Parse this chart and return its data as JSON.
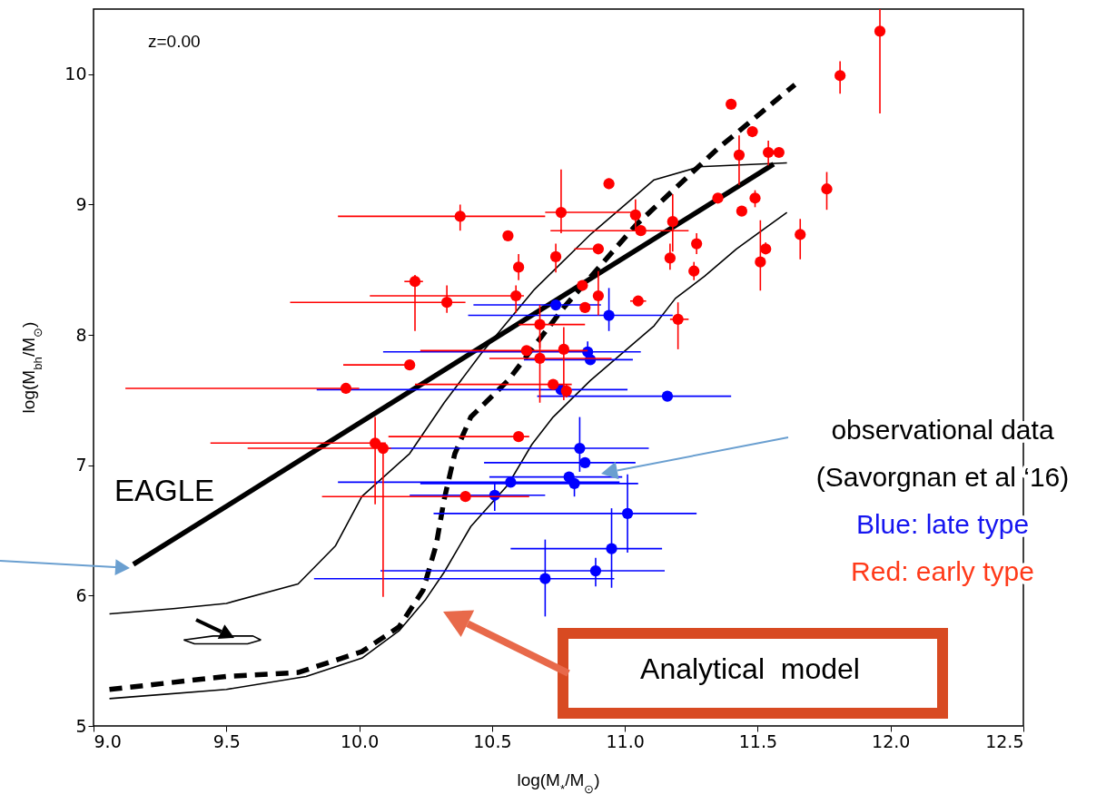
{
  "chart_data": {
    "type": "scatter",
    "xlabel": "log(M$_{*}$/M$_{⊙}$)",
    "ylabel": "log(M$_{bh}$/M$_{⊙}$)",
    "xlim": [
      9,
      12.5
    ],
    "ylim": [
      5,
      10.5
    ],
    "xticks": [
      {
        "value": 9,
        "label": "9.0"
      },
      9.5,
      {
        "value": 10,
        "label": "10.0"
      },
      10.5,
      {
        "value": 11,
        "label": "11.0"
      },
      11.5,
      {
        "value": 12,
        "label": "12.0"
      },
      12.5
    ],
    "yticks": [
      5,
      6,
      7,
      8,
      9,
      10
    ],
    "grid": false,
    "annotations": [
      "z=0.00",
      "EAGLE",
      "observational data",
      "(Savorgnan et al ‘16)",
      "Blue: late type",
      "Red: early type",
      "Analytical  model"
    ],
    "series": [
      {
        "type": "line",
        "color": "#000000",
        "line_style": "solid",
        "x": [
          9.06,
          9.3,
          9.5,
          9.77,
          9.91,
          10.01,
          10.19,
          10.32,
          10.46,
          10.66,
          10.87,
          11.11,
          11.28,
          11.61
        ],
        "values": [
          5.86,
          5.9,
          5.94,
          6.09,
          6.38,
          6.76,
          7.09,
          7.48,
          7.86,
          8.35,
          8.77,
          9.19,
          9.29,
          9.32
        ]
      },
      {
        "type": "line",
        "color": "#000000",
        "line_style": "solid",
        "x": [
          9.06,
          9.5,
          9.8,
          10.01,
          10.15,
          10.25,
          10.32,
          10.42,
          10.56,
          10.65,
          10.73,
          10.87,
          11.11,
          11.19,
          11.3,
          11.42,
          11.61
        ],
        "values": [
          5.21,
          5.28,
          5.38,
          5.52,
          5.73,
          5.97,
          6.18,
          6.53,
          6.85,
          7.16,
          7.37,
          7.65,
          8.07,
          8.28,
          8.45,
          8.66,
          8.94
        ]
      },
      {
        "type": "line",
        "color": "#000000",
        "line_style": "solid",
        "x": [
          9.34,
          9.45,
          9.6,
          9.63
        ],
        "values": [
          5.66,
          5.69,
          5.69,
          5.66
        ]
      },
      {
        "type": "line",
        "color": "#000000",
        "line_style": "solid",
        "x": [
          9.34,
          9.38,
          9.58,
          9.63
        ],
        "values": [
          5.66,
          5.63,
          5.63,
          5.66
        ]
      },
      {
        "type": "line",
        "color": "#000000",
        "line_style": "solid",
        "x": [
          9.15,
          11.56
        ],
        "values": [
          6.24,
          9.31
        ]
      },
      {
        "type": "line",
        "color": "#000000",
        "line_style": "dashed",
        "x": [
          9.06,
          9.5,
          9.77,
          10.01,
          10.15,
          10.24,
          10.29,
          10.32,
          10.36,
          10.42,
          10.56,
          10.77,
          11.04,
          11.35,
          11.64
        ],
        "values": [
          5.28,
          5.38,
          5.41,
          5.57,
          5.76,
          6.04,
          6.39,
          6.74,
          7.09,
          7.37,
          7.65,
          8.21,
          8.84,
          9.43,
          9.92
        ]
      },
      {
        "marker": "circle",
        "color": "#0000ff",
        "x": [
          10.74,
          10.94,
          10.86,
          10.87,
          11.16,
          10.76,
          10.83,
          10.85,
          10.79,
          10.81,
          10.57,
          10.51,
          11.01,
          10.95,
          10.7,
          10.89
        ],
        "values": [
          8.23,
          8.15,
          7.87,
          7.81,
          7.53,
          7.58,
          7.13,
          7.02,
          6.91,
          6.86,
          6.87,
          6.77,
          6.63,
          6.36,
          6.13,
          6.19
        ],
        "errors": [
          null,
          [
            8.03,
            8.36
          ],
          [
            7.82,
            7.95
          ],
          null,
          null,
          null,
          [
            6.95,
            7.37
          ],
          null,
          null,
          [
            6.76,
            6.9
          ],
          null,
          [
            6.65,
            6.86
          ],
          [
            6.33,
            6.93
          ],
          [
            6.06,
            6.67
          ],
          [
            5.84,
            6.43
          ],
          [
            6.07,
            6.29
          ]
        ],
        "xerrors": [
          [
            10.43,
            10.91
          ],
          [
            10.41,
            11.18
          ],
          [
            10.09,
            11.06
          ],
          [
            10.62,
            11.03
          ],
          [
            10.67,
            11.4
          ],
          [
            9.84,
            11.01
          ],
          [
            10.11,
            11.09
          ],
          [
            10.47,
            11.04
          ],
          [
            10.49,
            10.99
          ],
          [
            10.23,
            11.05
          ],
          [
            9.92,
            10.98
          ],
          [
            10.19,
            10.7
          ],
          [
            10.28,
            11.27
          ],
          [
            10.57,
            11.14
          ],
          [
            9.83,
            10.96
          ],
          [
            10.08,
            11.15
          ]
        ]
      },
      {
        "marker": "circle",
        "color": "#ff0000",
        "x": [
          10.38,
          10.76,
          11.04,
          10.94,
          10.56,
          11.06,
          11.18,
          10.9,
          10.74,
          10.6,
          10.21,
          10.33,
          10.59,
          10.84,
          10.9,
          10.85,
          11.05,
          11.2,
          10.68,
          10.63,
          10.77,
          10.68,
          10.19,
          9.95,
          10.73,
          10.78,
          11.4,
          11.48,
          11.43,
          11.54,
          11.58,
          11.81,
          11.96,
          11.76,
          11.35,
          11.49,
          11.44,
          11.66,
          11.53,
          11.51,
          11.27,
          11.26,
          11.17,
          10.6,
          10.06,
          10.09,
          10.4
        ],
        "values": [
          8.91,
          8.94,
          8.92,
          9.16,
          8.76,
          8.8,
          8.87,
          8.66,
          8.6,
          8.52,
          8.41,
          8.25,
          8.3,
          8.38,
          8.3,
          8.21,
          8.26,
          8.12,
          8.08,
          7.88,
          7.89,
          7.82,
          7.77,
          7.59,
          7.62,
          7.57,
          9.77,
          9.56,
          9.38,
          9.4,
          9.4,
          9.99,
          10.33,
          9.12,
          9.05,
          9.05,
          8.95,
          8.77,
          8.66,
          8.56,
          8.7,
          8.49,
          8.59,
          7.22,
          7.17,
          7.13,
          6.76
        ],
        "errors": [
          [
            8.8,
            9
          ],
          [
            8.78,
            9.27
          ],
          [
            8.8,
            9.04
          ],
          [
            9.12,
            9.2
          ],
          null,
          null,
          [
            8.64,
            9.08
          ],
          null,
          [
            8.48,
            8.7
          ],
          [
            8.42,
            8.62
          ],
          [
            8.03,
            8.46
          ],
          [
            8.17,
            8.38
          ],
          [
            8.17,
            8.38
          ],
          null,
          [
            8.15,
            8.49
          ],
          null,
          null,
          [
            7.89,
            8.25
          ],
          [
            7.9,
            8.23
          ],
          null,
          [
            7.5,
            8.06
          ],
          [
            7.48,
            8
          ],
          [
            7.73,
            7.8
          ],
          [
            7.55,
            7.63
          ],
          null,
          [
            7.52,
            7.62
          ],
          null,
          null,
          [
            9.15,
            9.53
          ],
          [
            9.3,
            9.49
          ],
          null,
          [
            9.85,
            10.1
          ],
          [
            9.7,
            10.5
          ],
          [
            8.96,
            9.25
          ],
          null,
          [
            8.98,
            9.11
          ],
          null,
          [
            8.58,
            8.89
          ],
          [
            8.62,
            8.71
          ],
          [
            8.34,
            8.88
          ],
          [
            8.62,
            8.78
          ],
          [
            8.42,
            8.56
          ],
          [
            8.5,
            8.7
          ],
          [
            7.2,
            7.25
          ],
          [
            6.7,
            7.37
          ],
          [
            5.99,
            7.15
          ],
          [
            6.73,
            6.8
          ]
        ],
        "xerrors": [
          [
            9.92,
            10.7
          ],
          [
            10.7,
            11.04
          ],
          null,
          null,
          null,
          [
            10.72,
            11.24
          ],
          null,
          [
            10.81,
            10.92
          ],
          null,
          null,
          [
            10.17,
            10.24
          ],
          [
            9.74,
            10.4
          ],
          [
            10.04,
            10.62
          ],
          null,
          null,
          null,
          [
            11.02,
            11.08
          ],
          [
            11.17,
            11.24
          ],
          [
            10.6,
            10.85
          ],
          [
            10.23,
            10.86
          ],
          null,
          [
            10.49,
            10.95
          ],
          [
            9.94,
            10.21
          ],
          [
            9.12,
            10
          ],
          [
            10.21,
            10.8
          ],
          null,
          null,
          null,
          null,
          null,
          null,
          null,
          null,
          null,
          null,
          null,
          null,
          null,
          null,
          null,
          null,
          null,
          null,
          [
            10.11,
            10.64
          ],
          [
            9.44,
            10.1
          ],
          [
            9.58,
            10.12
          ],
          [
            9.86,
            10.64
          ]
        ]
      }
    ]
  }
}
